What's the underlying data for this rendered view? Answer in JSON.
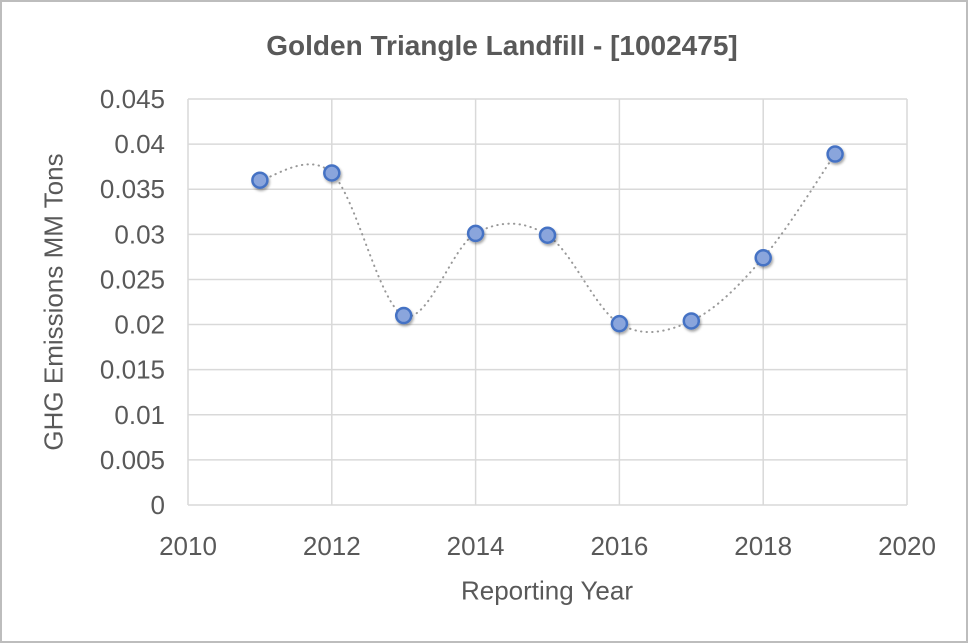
{
  "figure": {
    "background": "#FFFFFF",
    "border_color": "#BDBDBD"
  },
  "chart_data": {
    "type": "scatter",
    "subtype": "smooth-dotted-line-with-markers",
    "title": "Golden Triangle Landfill - [1002475]",
    "xlabel": "Reporting Year",
    "ylabel": "GHG Emissions MM Tons",
    "x": [
      2011,
      2012,
      2013,
      2014,
      2015,
      2016,
      2017,
      2018,
      2019
    ],
    "values": [
      0.036,
      0.0368,
      0.021,
      0.0301,
      0.0299,
      0.0201,
      0.0204,
      0.0274,
      0.0389
    ],
    "xlim": [
      2010,
      2020
    ],
    "ylim": [
      0,
      0.045
    ],
    "x_ticks": [
      2010,
      2012,
      2014,
      2016,
      2018,
      2020
    ],
    "x_tick_labels": [
      "2010",
      "2012",
      "2014",
      "2016",
      "2018",
      "2020"
    ],
    "y_ticks": [
      0,
      0.005,
      0.01,
      0.015,
      0.02,
      0.025,
      0.03,
      0.035,
      0.04,
      0.045
    ],
    "y_tick_labels": [
      "0",
      "0.005",
      "0.01",
      "0.015",
      "0.02",
      "0.025",
      "0.03",
      "0.035",
      "0.04",
      "0.045"
    ],
    "grid": true,
    "legend": "none",
    "colors": {
      "marker_fill": "#8AA5DC",
      "marker_stroke": "#4472C4",
      "line": "#999999",
      "grid": "#D9D9D9",
      "text": "#595959",
      "title_text": "#595959"
    }
  }
}
